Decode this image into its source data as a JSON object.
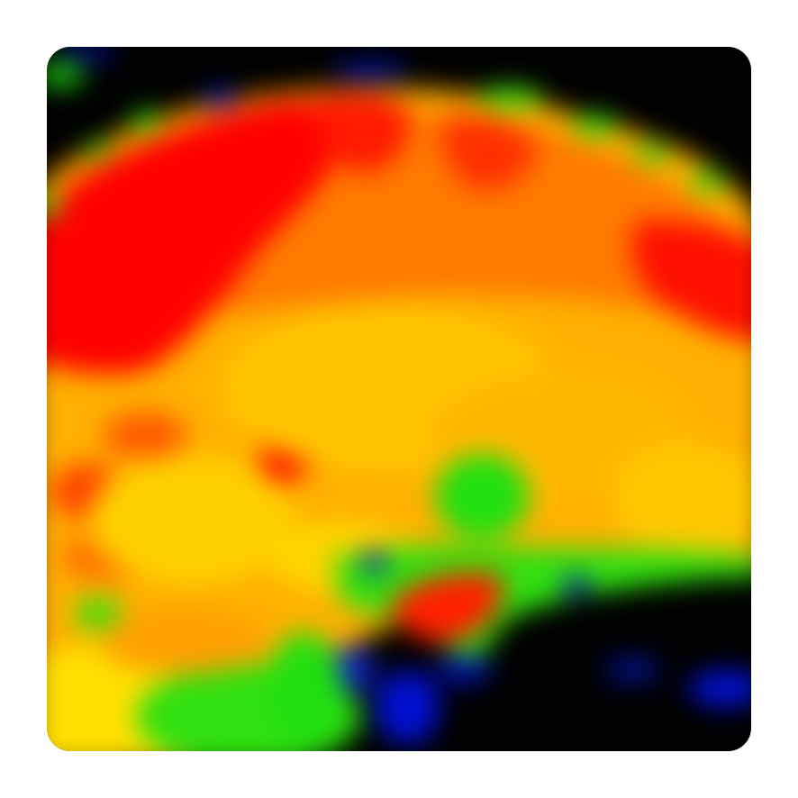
{
  "image": {
    "kind": "pseudocolor-scan",
    "colormap": [
      "#000000",
      "#0010d0",
      "#10e010",
      "#ffe000",
      "#ffa000",
      "#ff6000",
      "#ff0000"
    ]
  }
}
